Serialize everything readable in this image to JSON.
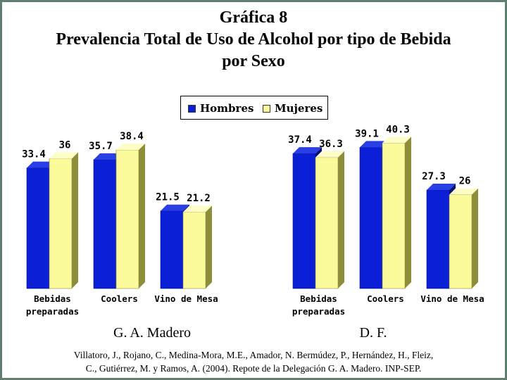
{
  "title": {
    "line1": "Gráfica 8",
    "line2": "Prevalencia Total de Uso de Alcohol por tipo de Bebida",
    "line3": "por Sexo"
  },
  "legend": {
    "hombres": "Hombres",
    "mujeres": "Mujeres"
  },
  "colors": {
    "hombres": "#0a1fd6",
    "mujeres": "#fbfb9c",
    "frame": "#5f7f6f"
  },
  "chart_data": [
    {
      "type": "bar",
      "title": "G. A. Madero",
      "categories": [
        "Bebidas preparadas",
        "Coolers",
        "Vino de Mesa"
      ],
      "category_lines": [
        [
          "Bebidas",
          "preparadas"
        ],
        [
          "Coolers"
        ],
        [
          "Vino de Mesa"
        ]
      ],
      "series": [
        {
          "name": "Hombres",
          "values": [
            33.4,
            35.7,
            21.5
          ]
        },
        {
          "name": "Mujeres",
          "values": [
            36,
            38.4,
            21.2
          ]
        }
      ],
      "ylim": [
        0,
        45
      ],
      "grid": false,
      "style": "3d"
    },
    {
      "type": "bar",
      "title": "D. F.",
      "categories": [
        "Bebidas preparadas",
        "Coolers",
        "Vino de Mesa"
      ],
      "category_lines": [
        [
          "Bebidas",
          "preparadas"
        ],
        [
          "Coolers"
        ],
        [
          "Vino de Mesa"
        ]
      ],
      "series": [
        {
          "name": "Hombres",
          "values": [
            37.4,
            39.1,
            27.3
          ]
        },
        {
          "name": "Mujeres",
          "values": [
            36.3,
            40.3,
            26
          ]
        }
      ],
      "ylim": [
        0,
        45
      ],
      "grid": false,
      "style": "3d"
    }
  ],
  "source": {
    "line1": "Villatoro, J., Rojano, C., Medina-Mora, M.E., Amador, N. Bermúdez, P., Hernández, H., Fleiz,",
    "line2": "C., Gutiérrez, M. y Ramos, A. (2004). Repote de la Delegación G. A. Madero. INP-SEP."
  }
}
